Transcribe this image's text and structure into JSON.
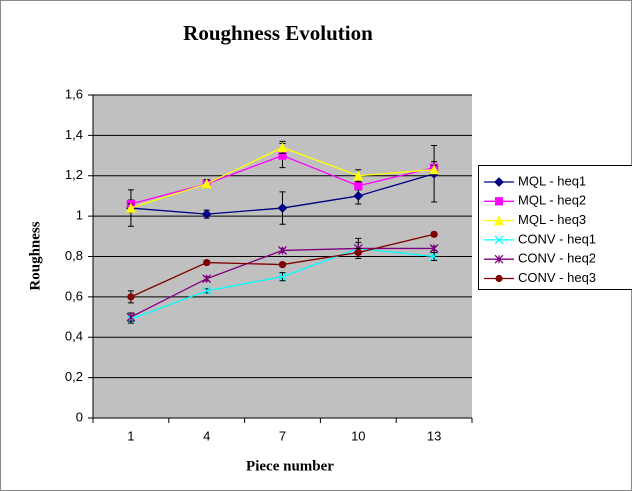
{
  "chart_data": {
    "type": "line",
    "title": "Roughness Evolution",
    "x_label": "Piece number",
    "y_label": "Roughness",
    "categories": [
      "1",
      "4",
      "7",
      "10",
      "13"
    ],
    "ylim": [
      0,
      1.6
    ],
    "yticks": [
      0,
      {
        "value": 0.2,
        "label": "0,2"
      },
      {
        "value": 0.4,
        "label": "0,4"
      },
      {
        "value": 0.6,
        "label": "0,6"
      },
      {
        "value": 0.8,
        "label": "0,8"
      },
      1,
      {
        "value": 1.2,
        "label": "1,2"
      },
      {
        "value": 1.4,
        "label": "1,4"
      },
      {
        "value": 1.6,
        "label": "1,6"
      }
    ],
    "grid": true,
    "legend": "right",
    "series": [
      {
        "name": "MQL - heq1",
        "color": "#000080",
        "marker": "diamond",
        "values": [
          1.04,
          1.01,
          1.04,
          1.1,
          1.21
        ],
        "errors": [
          0.09,
          0.02,
          0.08,
          0.04,
          0.14
        ]
      },
      {
        "name": "MQL - heq2",
        "color": "#ff00ff",
        "marker": "square",
        "values": [
          1.06,
          1.16,
          1.3,
          1.15,
          1.24
        ],
        "errors": [
          0.02,
          0.02,
          0.06,
          0.02,
          0.03
        ]
      },
      {
        "name": "MQL - heq3",
        "color": "#ffff00",
        "marker": "triangle",
        "values": [
          1.04,
          1.16,
          1.34,
          1.2,
          1.23
        ],
        "errors": [
          0.02,
          0.02,
          0.03,
          0.03,
          0.02
        ]
      },
      {
        "name": "CONV - heq1",
        "color": "#00ffff",
        "marker": "x",
        "values": [
          0.49,
          0.63,
          0.7,
          0.84,
          0.8
        ],
        "errors": [
          0.02,
          0.01,
          0.02,
          0.03,
          0.02
        ]
      },
      {
        "name": "CONV - heq2",
        "color": "#800080",
        "marker": "star",
        "values": [
          0.5,
          0.69,
          0.83,
          0.84,
          0.84
        ],
        "errors": [
          0.02,
          0.01,
          0.01,
          0.05,
          0.01
        ]
      },
      {
        "name": "CONV - heq3",
        "color": "#800000",
        "marker": "circle",
        "values": [
          0.6,
          0.77,
          0.76,
          0.82,
          0.91
        ],
        "errors": [
          0.03,
          0.01,
          0.01,
          0.02,
          0.01
        ]
      }
    ]
  }
}
